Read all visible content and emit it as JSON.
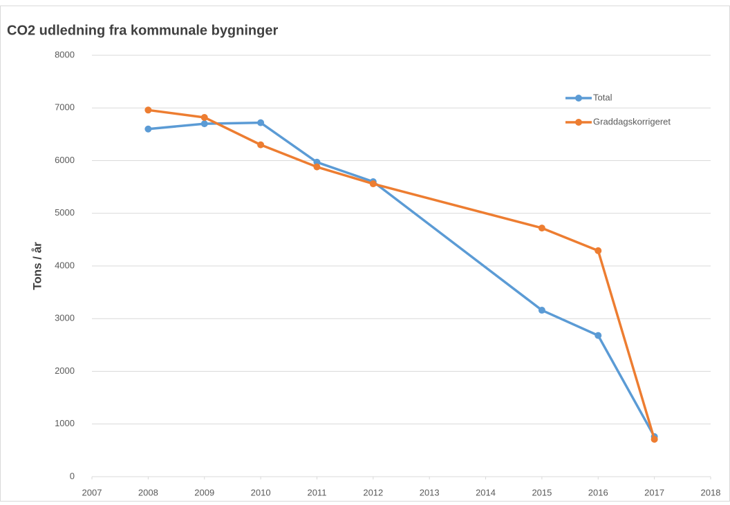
{
  "chart_data": {
    "type": "line",
    "title": "CO2 udledning fra kommunale bygninger",
    "y_label": "Tons / år",
    "x": [
      2008,
      2009,
      2010,
      2011,
      2012,
      2015,
      2016,
      2017
    ],
    "series": [
      {
        "name": "Total",
        "color": "#5b9bd5",
        "values": [
          6600,
          6700,
          6720,
          5970,
          5600,
          3160,
          2680,
          760
        ]
      },
      {
        "name": "Graddagskorrigeret",
        "color": "#ed7d31",
        "values": [
          6960,
          6820,
          6300,
          5880,
          5560,
          4720,
          4290,
          710
        ]
      }
    ],
    "xlim": [
      2007,
      2018
    ],
    "xticks": [
      2007,
      2008,
      2009,
      2010,
      2011,
      2012,
      2013,
      2014,
      2015,
      2016,
      2017,
      2018
    ],
    "ylim": [
      0,
      8000
    ],
    "yticks": [
      0,
      1000,
      2000,
      3000,
      4000,
      5000,
      6000,
      7000,
      8000
    ],
    "grid": true,
    "legend": "upper right"
  }
}
